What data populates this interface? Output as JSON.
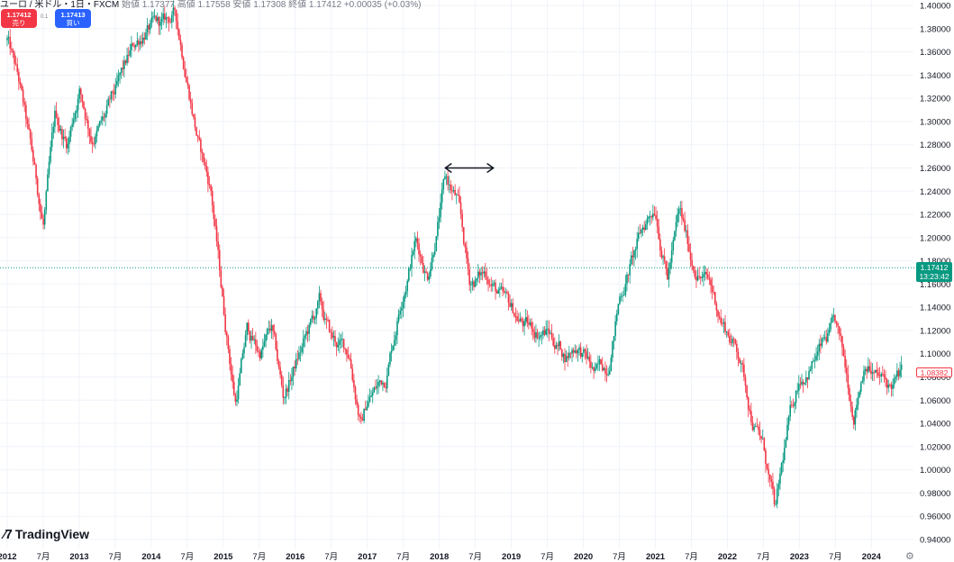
{
  "header": {
    "symbol_text": "ユーロ / 米ドル・1日・FXCM",
    "ohlc_text": "始値 1.17377  高値 1.17558  安値 1.17308  終値 1.17412  +0.00035 (+0.03%)"
  },
  "trade": {
    "sell_price": "1.17412",
    "sell_label": "売り",
    "spread": "0.1",
    "buy_price": "1.17413",
    "buy_label": "買い"
  },
  "price_tag": {
    "price": "1.17412",
    "countdown": "13:23:42"
  },
  "ma_tag": {
    "value": "1.08382"
  },
  "brand": {
    "logo_text": "TradingView"
  },
  "colors": {
    "up": "#089981",
    "down": "#f23645",
    "last_price_line": "#089981"
  },
  "chart_data": {
    "type": "candlestick",
    "title": "",
    "xlabel": "",
    "ylabel": "",
    "interval": "1 day",
    "x_range": [
      "2012-01",
      "2024-06"
    ],
    "ylim": [
      0.94,
      1.4
    ],
    "y_scale": "linear",
    "grid": true,
    "yticks": [
      "1.40000",
      "1.38000",
      "1.36000",
      "1.34000",
      "1.32000",
      "1.30000",
      "1.28000",
      "1.26000",
      "1.24000",
      "1.22000",
      "1.20000",
      "1.18000",
      "1.16000",
      "1.14000",
      "1.12000",
      "1.10000",
      "1.08000",
      "1.06000",
      "1.04000",
      "1.02000",
      "1.00000",
      "0.98000",
      "0.96000",
      "0.94000"
    ],
    "xticks": [
      {
        "date": "2012-01",
        "label": "2012",
        "major": true
      },
      {
        "date": "2012-07",
        "label": "7月",
        "major": false
      },
      {
        "date": "2013-01",
        "label": "2013",
        "major": true
      },
      {
        "date": "2013-07",
        "label": "7月",
        "major": false
      },
      {
        "date": "2014-01",
        "label": "2014",
        "major": true
      },
      {
        "date": "2014-07",
        "label": "7月",
        "major": false
      },
      {
        "date": "2015-01",
        "label": "2015",
        "major": true
      },
      {
        "date": "2015-07",
        "label": "7月",
        "major": false
      },
      {
        "date": "2016-01",
        "label": "2016",
        "major": true
      },
      {
        "date": "2016-07",
        "label": "7月",
        "major": false
      },
      {
        "date": "2017-01",
        "label": "2017",
        "major": true
      },
      {
        "date": "2017-07",
        "label": "7月",
        "major": false
      },
      {
        "date": "2018-01",
        "label": "2018",
        "major": true
      },
      {
        "date": "2018-07",
        "label": "7月",
        "major": false
      },
      {
        "date": "2019-01",
        "label": "2019",
        "major": true
      },
      {
        "date": "2019-07",
        "label": "7月",
        "major": false
      },
      {
        "date": "2020-01",
        "label": "2020",
        "major": true
      },
      {
        "date": "2020-07",
        "label": "7月",
        "major": false
      },
      {
        "date": "2021-01",
        "label": "2021",
        "major": true
      },
      {
        "date": "2021-07",
        "label": "7月",
        "major": false
      },
      {
        "date": "2022-01",
        "label": "2022",
        "major": true
      },
      {
        "date": "2022-07",
        "label": "7月",
        "major": false
      },
      {
        "date": "2023-01",
        "label": "2023",
        "major": true
      },
      {
        "date": "2023-07",
        "label": "7月",
        "major": false
      },
      {
        "date": "2024-01",
        "label": "2024",
        "major": true
      }
    ],
    "last_price": 1.17412,
    "price_path": [
      [
        "2012-01",
        1.37
      ],
      [
        "2012-03",
        1.33
      ],
      [
        "2012-05",
        1.27
      ],
      [
        "2012-07",
        1.21
      ],
      [
        "2012-09",
        1.3
      ],
      [
        "2012-11",
        1.28
      ],
      [
        "2013-01",
        1.33
      ],
      [
        "2013-03",
        1.29
      ],
      [
        "2013-05",
        1.3
      ],
      [
        "2013-07",
        1.32
      ],
      [
        "2013-10",
        1.36
      ],
      [
        "2013-12",
        1.38
      ],
      [
        "2014-03",
        1.38
      ],
      [
        "2014-05",
        1.39
      ],
      [
        "2014-07",
        1.34
      ],
      [
        "2014-09",
        1.28
      ],
      [
        "2014-11",
        1.24
      ],
      [
        "2015-01",
        1.14
      ],
      [
        "2015-03",
        1.06
      ],
      [
        "2015-05",
        1.12
      ],
      [
        "2015-07",
        1.1
      ],
      [
        "2015-09",
        1.12
      ],
      [
        "2015-11",
        1.06
      ],
      [
        "2016-01",
        1.09
      ],
      [
        "2016-05",
        1.14
      ],
      [
        "2016-07",
        1.11
      ],
      [
        "2016-10",
        1.1
      ],
      [
        "2016-12",
        1.04
      ],
      [
        "2017-01",
        1.06
      ],
      [
        "2017-04",
        1.08
      ],
      [
        "2017-07",
        1.16
      ],
      [
        "2017-09",
        1.2
      ],
      [
        "2017-11",
        1.17
      ],
      [
        "2018-02",
        1.25
      ],
      [
        "2018-04",
        1.23
      ],
      [
        "2018-06",
        1.16
      ],
      [
        "2018-09",
        1.17
      ],
      [
        "2018-12",
        1.14
      ],
      [
        "2019-04",
        1.12
      ],
      [
        "2019-07",
        1.12
      ],
      [
        "2019-10",
        1.1
      ],
      [
        "2019-12",
        1.11
      ],
      [
        "2020-03",
        1.08
      ],
      [
        "2020-05",
        1.09
      ],
      [
        "2020-07",
        1.15
      ],
      [
        "2020-09",
        1.18
      ],
      [
        "2020-12",
        1.22
      ],
      [
        "2021-01",
        1.23
      ],
      [
        "2021-03",
        1.17
      ],
      [
        "2021-05",
        1.22
      ],
      [
        "2021-07",
        1.18
      ],
      [
        "2021-10",
        1.16
      ],
      [
        "2021-12",
        1.13
      ],
      [
        "2022-03",
        1.1
      ],
      [
        "2022-05",
        1.05
      ],
      [
        "2022-07",
        1.02
      ],
      [
        "2022-09",
        0.96
      ],
      [
        "2022-11",
        1.03
      ],
      [
        "2023-01",
        1.08
      ],
      [
        "2023-04",
        1.1
      ],
      [
        "2023-07",
        1.12
      ],
      [
        "2023-10",
        1.05
      ],
      [
        "2023-12",
        1.1
      ],
      [
        "2024-02",
        1.08
      ],
      [
        "2024-04",
        1.07
      ],
      [
        "2024-06",
        1.08
      ]
    ],
    "annotations": [
      {
        "type": "double-arrow",
        "from": "2018-02",
        "to": "2018-10",
        "price": 1.26
      }
    ]
  }
}
